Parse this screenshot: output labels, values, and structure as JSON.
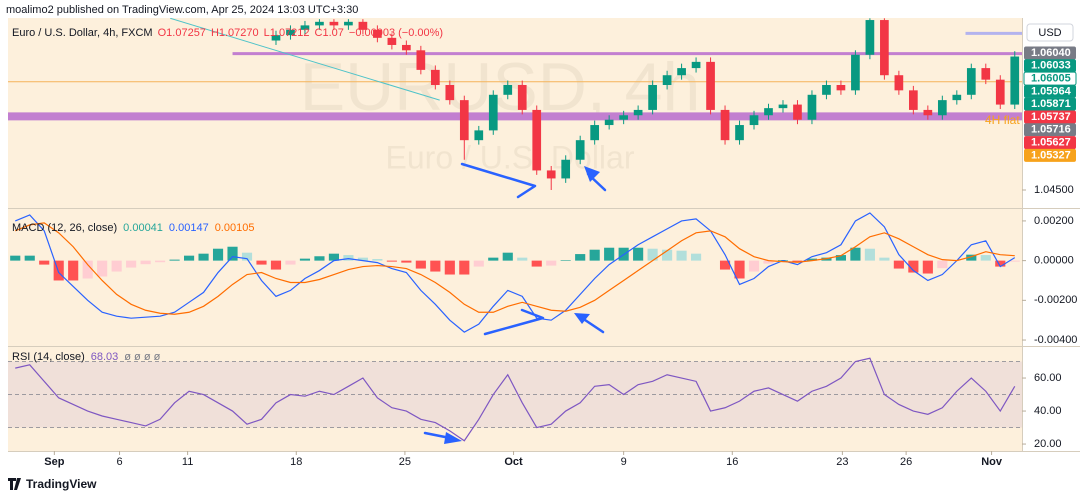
{
  "header": "moalimo2 published on TradingView.com, Apr 25, 2024 13:03 UTC+3:30",
  "footer": "TradingView",
  "chart_data": [
    {
      "type": "candlestick",
      "title": "Euro / U.S. Dollar, 4h, FXCM",
      "ohlc_labels": [
        "O1.07257",
        "H1.07270",
        "L1.07212",
        "C1.07"
      ],
      "change": "−0.00003 (−0.00%)",
      "watermark": "EURUSD, 4h",
      "watermark_sub": "Euro / U.S. Dollar",
      "currency": "USD",
      "annotation": "4H flat",
      "up_color": "#089981",
      "down_color": "#f23645",
      "open": [
        null,
        null,
        null,
        null,
        null,
        null,
        null,
        null,
        null,
        null,
        null,
        null,
        null,
        null,
        null,
        null,
        null,
        null,
        1.0618,
        1.0624,
        1.063,
        1.0635,
        1.0639,
        1.0635,
        1.0639,
        1.063,
        1.0621,
        1.0613,
        1.0607,
        1.0585,
        1.0568,
        1.0551,
        1.0506,
        1.0517,
        1.0557,
        1.0568,
        1.054,
        1.0472,
        1.0463,
        1.0484,
        1.0506,
        1.0523,
        1.0529,
        1.0534,
        1.054,
        1.0568,
        1.0579,
        1.0587,
        1.0594,
        1.054,
        1.0506,
        1.0523,
        1.0534,
        1.0542,
        1.0546,
        1.0529,
        1.0557,
        1.0568,
        1.0562,
        1.0602,
        1.0641,
        1.0579,
        1.0562,
        1.054,
        1.0534,
        1.0551,
        1.0557,
        1.0587,
        1.0574,
        1.0546
      ],
      "high": [
        null,
        null,
        null,
        null,
        null,
        null,
        null,
        null,
        null,
        null,
        null,
        null,
        null,
        null,
        null,
        null,
        null,
        null,
        1.0629,
        1.0635,
        1.064,
        1.0642,
        1.0642,
        1.0642,
        1.0642,
        1.0635,
        1.0626,
        1.0618,
        1.0612,
        1.059,
        1.0573,
        1.0556,
        1.0522,
        1.0562,
        1.0573,
        1.0573,
        1.0545,
        1.0477,
        1.0489,
        1.0511,
        1.0528,
        1.0534,
        1.0539,
        1.0545,
        1.0573,
        1.0584,
        1.0592,
        1.0599,
        1.0599,
        1.0545,
        1.0528,
        1.0539,
        1.0547,
        1.0551,
        1.0551,
        1.0562,
        1.0573,
        1.0573,
        1.0607,
        1.0643,
        1.0643,
        1.0584,
        1.0567,
        1.0545,
        1.0556,
        1.0562,
        1.0592,
        1.0592,
        1.0579,
        1.0606
      ],
      "low": [
        null,
        null,
        null,
        null,
        null,
        null,
        null,
        null,
        null,
        null,
        null,
        null,
        null,
        null,
        null,
        null,
        null,
        null,
        1.0613,
        1.0619,
        1.0625,
        1.063,
        1.063,
        1.063,
        1.0625,
        1.0616,
        1.0608,
        1.0602,
        1.058,
        1.0563,
        1.0546,
        1.0484,
        1.0501,
        1.0512,
        1.0552,
        1.0535,
        1.0467,
        1.045,
        1.0458,
        1.0479,
        1.0501,
        1.0518,
        1.0524,
        1.0529,
        1.0535,
        1.0563,
        1.0574,
        1.0582,
        1.0535,
        1.0501,
        1.0501,
        1.0518,
        1.0529,
        1.0537,
        1.0524,
        1.0524,
        1.0552,
        1.0557,
        1.0557,
        1.0597,
        1.0574,
        1.0557,
        1.0535,
        1.0529,
        1.0529,
        1.0546,
        1.0552,
        1.0569,
        1.0541,
        1.0541
      ],
      "close": [
        null,
        null,
        null,
        null,
        null,
        null,
        null,
        null,
        null,
        null,
        null,
        null,
        null,
        null,
        null,
        null,
        null,
        null,
        1.0624,
        1.063,
        1.0635,
        1.0639,
        1.0635,
        1.0639,
        1.063,
        1.0621,
        1.0613,
        1.0607,
        1.0585,
        1.0568,
        1.0551,
        1.0506,
        1.0517,
        1.0557,
        1.0568,
        1.054,
        1.0472,
        1.0463,
        1.0484,
        1.0506,
        1.0523,
        1.0529,
        1.0534,
        1.054,
        1.0568,
        1.0579,
        1.0587,
        1.0594,
        1.054,
        1.0506,
        1.0523,
        1.0534,
        1.0542,
        1.0546,
        1.0529,
        1.0557,
        1.0568,
        1.0562,
        1.0602,
        1.0641,
        1.0579,
        1.0562,
        1.054,
        1.0534,
        1.0551,
        1.0557,
        1.0587,
        1.0574,
        1.0546,
        1.06
      ],
      "xlim": [
        -0.5,
        69.5
      ],
      "xticks": [
        {
          "value": 2.7,
          "label": "Sep"
        },
        {
          "value": 7.2,
          "label": "6"
        },
        {
          "value": 11.9,
          "label": "11"
        },
        {
          "value": 19.4,
          "label": "18"
        },
        {
          "value": 26.9,
          "label": "25"
        },
        {
          "value": 34.4,
          "label": "Oct"
        },
        {
          "value": 42.0,
          "label": "9"
        },
        {
          "value": 49.5,
          "label": "16"
        },
        {
          "value": 57.1,
          "label": "23"
        },
        {
          "value": 61.5,
          "label": "26"
        },
        {
          "value": 67.4,
          "label": "Nov"
        }
      ],
      "ylim": [
        1.04309,
        1.06433
      ],
      "yticks": [
        {
          "value": 1.045,
          "label": "1.04500"
        }
      ],
      "price_labels": [
        {
          "value": 1.0604,
          "label": "1.06040",
          "color": "#787b86"
        },
        {
          "value": 1.06033,
          "label": "1.06033",
          "color": "#089981"
        },
        {
          "value": 1.06005,
          "label": "1.06005",
          "color": "#ffffff"
        },
        {
          "value": 1.05964,
          "label": "1.05964",
          "color": "#089981"
        },
        {
          "value": 1.05871,
          "label": "1.05871",
          "color": "#089981"
        },
        {
          "value": 1.05737,
          "label": "1.05737",
          "color": "#f23645"
        },
        {
          "value": 1.05716,
          "label": "1.05716",
          "color": "#787b86"
        },
        {
          "value": 1.05627,
          "label": "1.05627",
          "color": "#f23645"
        },
        {
          "value": 1.05327,
          "label": "1.05327",
          "color": "#f7a21b"
        }
      ],
      "levels": [
        {
          "value": 1.06033,
          "color": "#c27fd0",
          "from": 15,
          "style": "medium"
        },
        {
          "value": 1.05716,
          "color": "#f5b35a",
          "from": -0.5,
          "style": "thin"
        },
        {
          "value": 1.05327,
          "color": "#c27fd0",
          "from": -0.5,
          "style": "thick"
        },
        {
          "value": 1.0626,
          "color": "#b3b3ee",
          "from": 65.6,
          "style": "medium"
        }
      ],
      "trend_line": {
        "color": "#4fc3c9",
        "points": [
          [
            10.7,
            1.0643
          ],
          [
            29.3,
            1.0551
          ]
        ]
      }
    },
    {
      "type": "macd",
      "title": "MACD (12, 26, close)",
      "legend_values": [
        "0.00041",
        "0.00147",
        "0.00105"
      ],
      "series": [
        {
          "color": "#2962ff",
          "values": [
            0.002,
            0.0023,
            0.0015,
            -0.0006,
            -0.0013,
            -0.002,
            -0.0026,
            -0.0028,
            -0.0029,
            -0.00285,
            -0.0028,
            -0.0026,
            -0.0021,
            -0.0016,
            -0.0006,
            0.0002,
            0.0001,
            -0.001,
            -0.0018,
            -0.0015,
            -0.0009,
            -0.0005,
            0,
            0.0001,
            0,
            -0.0001,
            -0.0004,
            -0.0006,
            -0.0015,
            -0.0022,
            -0.003,
            -0.0036,
            -0.0032,
            -0.0023,
            -0.0015,
            -0.0018,
            -0.0029,
            -0.003,
            -0.0025,
            -0.0017,
            -0.0009,
            -0.0002,
            0.0003,
            0.0008,
            0.0012,
            0.0016,
            0.002,
            0.0021,
            0.0015,
            0.0003,
            -0.0012,
            -0.0009,
            -0.0003,
            0,
            -0.0002,
            0.0002,
            0.0004,
            0.0008,
            0.002,
            0.0024,
            0.0017,
            0.0003,
            -0.0005,
            -0.001,
            -0.0007,
            0,
            0.0008,
            0.001,
            -0.0003,
            0.00015
          ]
        },
        {
          "color": "#ff6d00",
          "values": [
            0.0015,
            0.0018,
            0.0019,
            0.0014,
            0.0007,
            -0.0002,
            -0.001,
            -0.0017,
            -0.0022,
            -0.0025,
            -0.00265,
            -0.0027,
            -0.0026,
            -0.0023,
            -0.0018,
            -0.0012,
            -0.0007,
            -0.0006,
            -0.0009,
            -0.0011,
            -0.0011,
            -0.00095,
            -0.0007,
            -0.00045,
            -0.0003,
            -0.00025,
            -0.0003,
            -0.0004,
            -0.0007,
            -0.0011,
            -0.0016,
            -0.0022,
            -0.0026,
            -0.0026,
            -0.0023,
            -0.0021,
            -0.0023,
            -0.0025,
            -0.00255,
            -0.00235,
            -0.002,
            -0.0015,
            -0.001,
            -0.0005,
            0,
            0.0005,
            0.001,
            0.0014,
            0.0015,
            0.0012,
            0.0006,
            0.0002,
            0,
            -5e-05,
            -8e-05,
            0,
            0.0001,
            0.00025,
            0.0007,
            0.0012,
            0.0014,
            0.0011,
            0.0007,
            0.0003,
            5e-05,
            0,
            0.0002,
            0.00045,
            0.0003,
            0.00025
          ]
        }
      ],
      "histogram": {
        "colors": [
          "#26a69a",
          "#b2dfdb",
          "#ff5252",
          "#ffcdd2"
        ],
        "values": [
          0.00025,
          0.00025,
          -0.0002,
          -0.001,
          -0.001,
          -0.0009,
          -0.0008,
          -0.00055,
          -0.00035,
          -0.00018,
          -8e-05,
          5e-05,
          0.00025,
          0.00035,
          0.0006,
          0.0007,
          0.0004,
          -0.0002,
          -0.00045,
          -0.0002,
          0.0001,
          0.00022,
          0.00035,
          0.00028,
          0.00015,
          8e-05,
          -5e-05,
          -0.0001,
          -0.0004,
          -0.00055,
          -0.0007,
          -0.0007,
          -0.0003,
          0.00015,
          0.0004,
          0.00015,
          -0.0003,
          -0.00025,
          3e-05,
          0.00033,
          0.00055,
          0.00065,
          0.00065,
          0.00065,
          0.0006,
          0.00055,
          0.0005,
          0.00035,
          0,
          -0.00045,
          -0.0009,
          -0.00055,
          -0.00015,
          3e-05,
          -6e-05,
          0.0001,
          0.00015,
          0.00028,
          0.00065,
          0.0006,
          0.00015,
          -0.0004,
          -0.0006,
          -0.00065,
          -0.00038,
          0,
          0.0003,
          0.00028,
          -0.0003,
          -5e-05
        ]
      },
      "ylim": [
        -0.00425,
        0.00255
      ],
      "yticks": [
        {
          "value": 0.002,
          "label": "0.00200"
        },
        {
          "value": 0,
          "label": "0.00000"
        },
        {
          "value": -0.002,
          "label": "-0.00200"
        },
        {
          "value": -0.004,
          "label": "-0.00400"
        }
      ]
    },
    {
      "type": "line",
      "title": "RSI (14, close)",
      "legend_value": "68.03",
      "legend_extra": "ø ø ø ø",
      "color": "#7e57c2",
      "band": [
        30,
        70
      ],
      "midline": 50,
      "values": [
        66,
        68,
        58,
        48,
        44,
        40,
        37,
        35,
        33,
        31,
        35,
        45,
        52,
        50,
        45,
        40,
        32,
        35,
        45,
        50,
        49,
        52,
        50,
        55,
        60,
        48,
        42,
        40,
        35,
        33,
        28,
        22,
        35,
        50,
        62,
        45,
        30,
        32,
        40,
        45,
        55,
        56,
        50,
        56,
        58,
        62,
        60,
        58,
        40,
        42,
        46,
        52,
        54,
        50,
        46,
        52,
        55,
        60,
        70,
        72,
        50,
        44,
        40,
        38,
        42,
        52,
        60,
        52,
        40,
        55
      ],
      "ylim": [
        16.4,
        78.2
      ],
      "yticks": [
        {
          "value": 60,
          "label": "60.00"
        },
        {
          "value": 40,
          "label": "40.00"
        },
        {
          "value": 20,
          "label": "20.00"
        }
      ]
    }
  ]
}
